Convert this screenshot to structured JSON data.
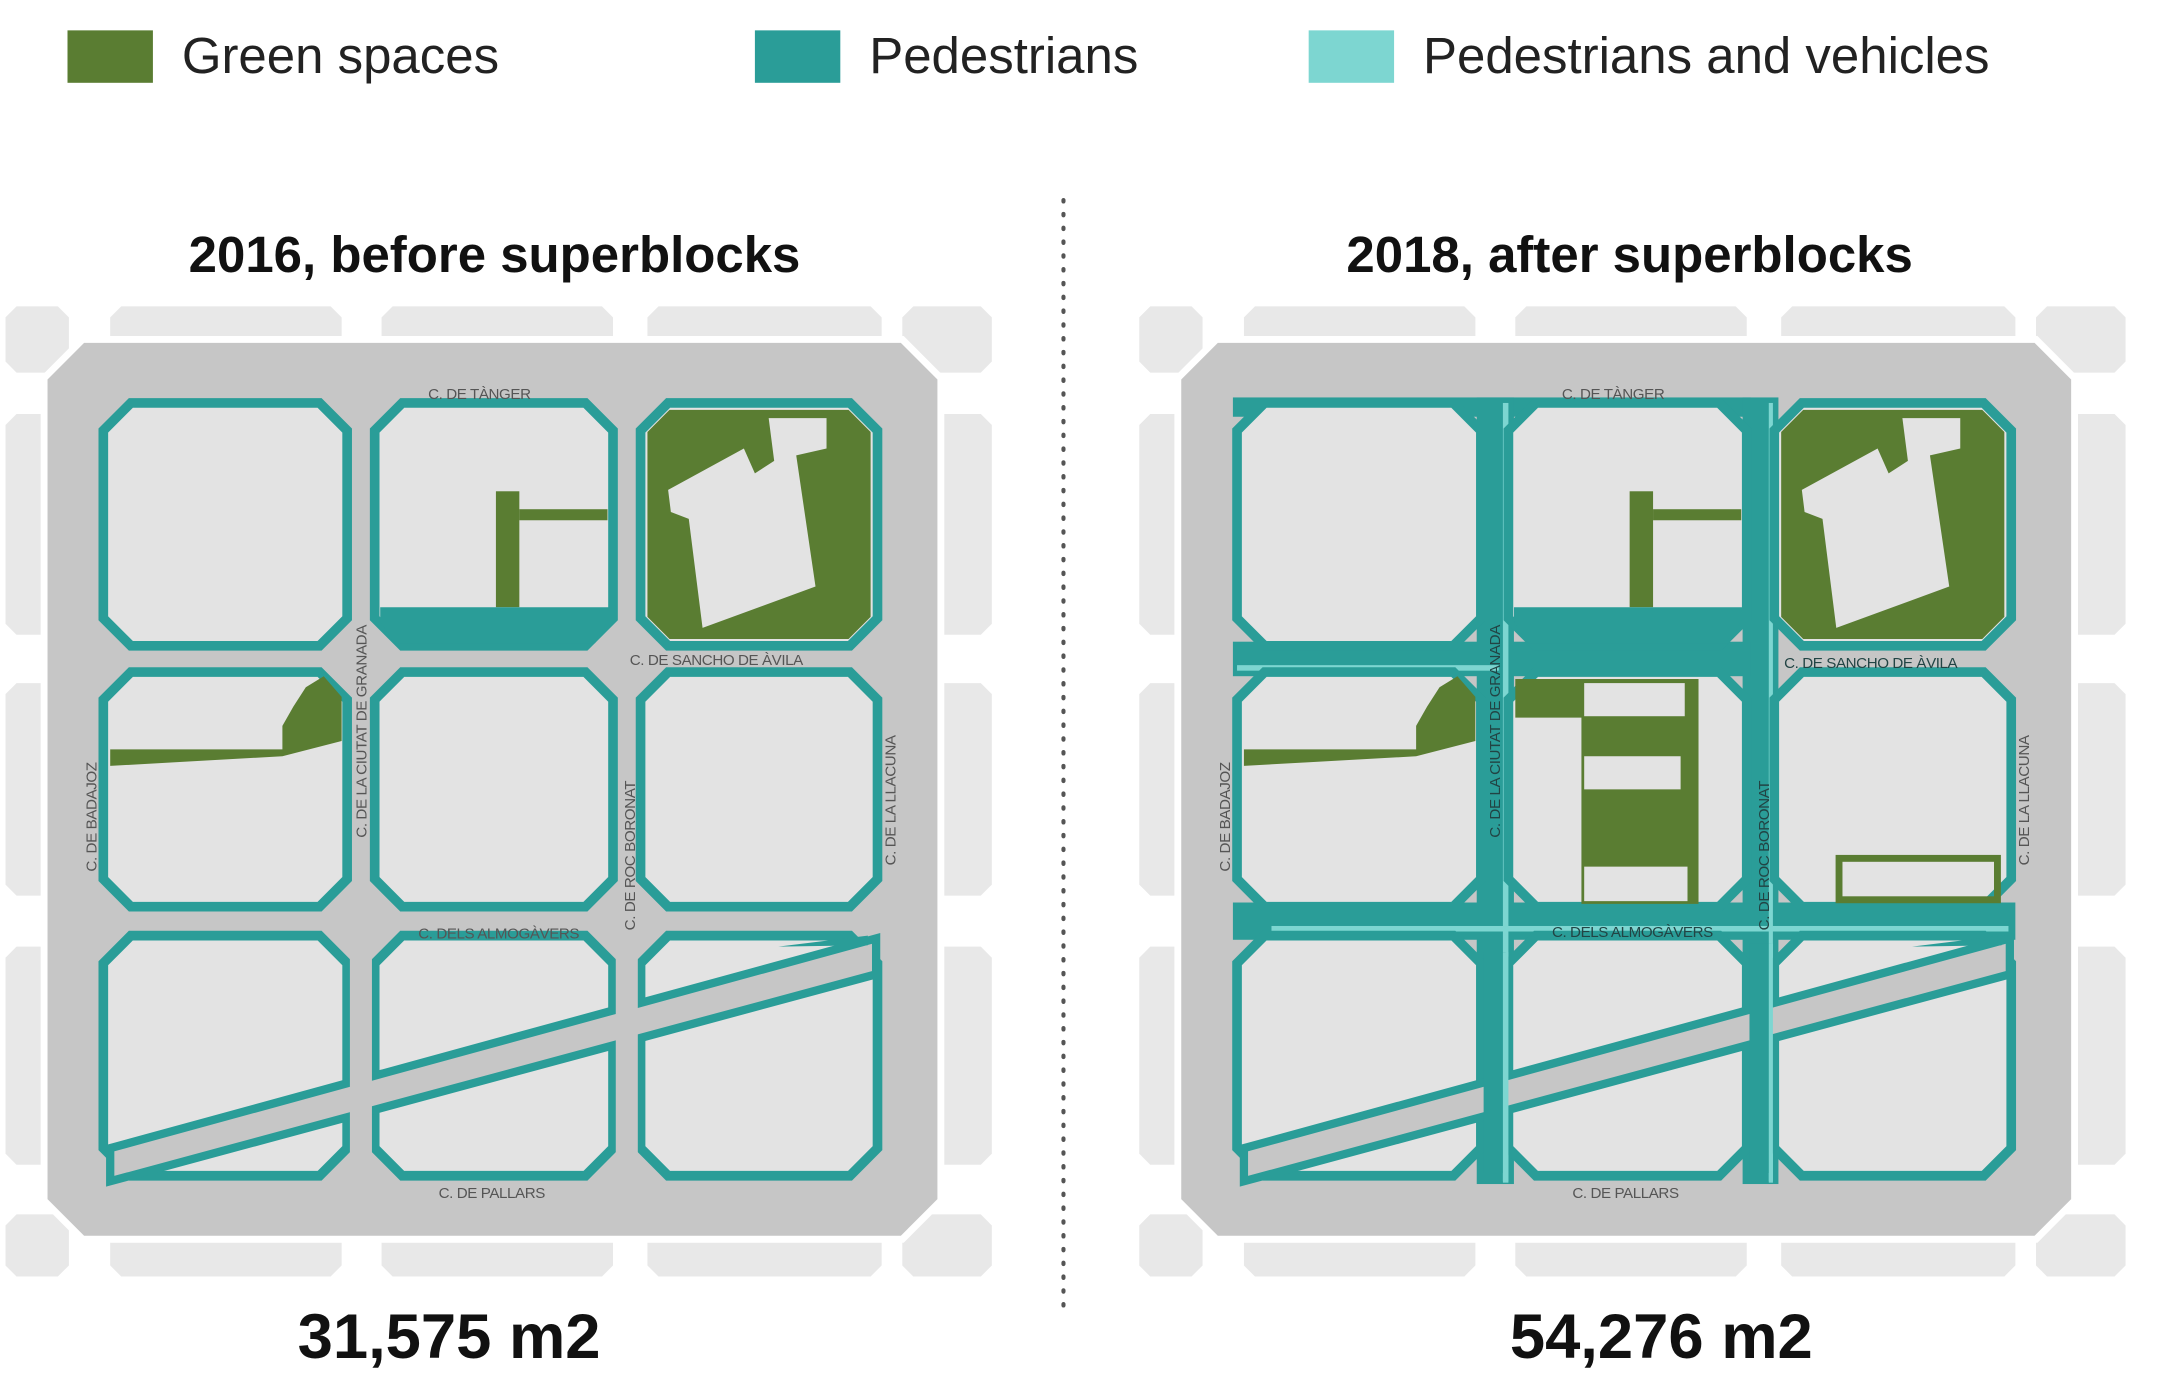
{
  "colors": {
    "green_spaces": "#5a7d32",
    "pedestrians": "#2a9d98",
    "pedestrians_and_vehicles": "#7dd6d1",
    "street": "#c6c6c6",
    "block": "#e3e3e3",
    "surrounding_block": "#e8e8e8"
  },
  "legend": [
    {
      "label": "Green spaces",
      "color": "#5a7d32"
    },
    {
      "label": "Pedestrians",
      "color": "#2a9d98"
    },
    {
      "label": "Pedestrians and vehicles",
      "color": "#7dd6d1"
    }
  ],
  "panels": [
    {
      "title": "2016, before superblocks",
      "total": "31,575 m2"
    },
    {
      "title": "2018, after superblocks",
      "total": "54,276 m2"
    }
  ],
  "streets": {
    "tanger": "C. DE TÀNGER",
    "sancho": "C. DE SANCHO DE ÀVILA",
    "granada": "C. DE LA CIUTAT DE GRANADA",
    "badajoz": "C. DE BADAJOZ",
    "roc": "C. DE ROC BORONAT",
    "llacuna": "C. DE LA LLACUNA",
    "almogavers": "C. DELS ALMOGÀVERS",
    "pallars": "C. DE PALLARS"
  }
}
